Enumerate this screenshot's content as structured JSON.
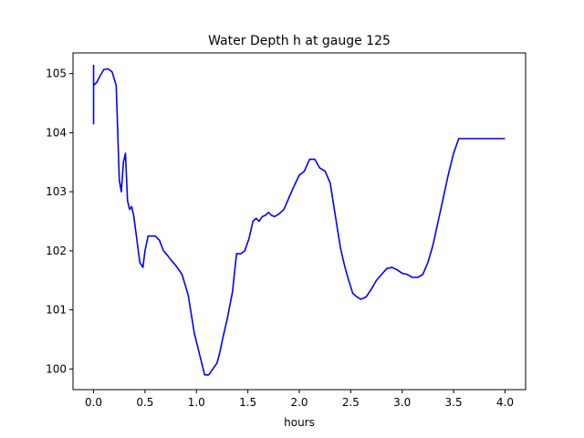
{
  "chart_data": {
    "type": "line",
    "title": "Water Depth h at gauge 125",
    "xlabel": "hours",
    "ylabel": "",
    "xlim": [
      -0.2,
      4.2
    ],
    "ylim": [
      99.65,
      105.35
    ],
    "xticks": [
      0.0,
      0.5,
      1.0,
      1.5,
      2.0,
      2.5,
      3.0,
      3.5,
      4.0
    ],
    "xtick_labels": [
      "0.0",
      "0.5",
      "1.0",
      "1.5",
      "2.0",
      "2.5",
      "3.0",
      "3.5",
      "4.0"
    ],
    "yticks": [
      100,
      101,
      102,
      103,
      104,
      105
    ],
    "ytick_labels": [
      "100",
      "101",
      "102",
      "103",
      "104",
      "105"
    ],
    "grid": false,
    "legend": "none",
    "series": [
      {
        "color": "#0000ff",
        "x": [
          0.0,
          0.0,
          0.0,
          0.0,
          0.03,
          0.06,
          0.1,
          0.14,
          0.18,
          0.22,
          0.235,
          0.25,
          0.27,
          0.29,
          0.31,
          0.33,
          0.35,
          0.37,
          0.39,
          0.42,
          0.45,
          0.48,
          0.5,
          0.53,
          0.56,
          0.6,
          0.64,
          0.68,
          0.72,
          0.75,
          0.8,
          0.86,
          0.92,
          0.98,
          1.03,
          1.08,
          1.12,
          1.16,
          1.2,
          1.23,
          1.26,
          1.3,
          1.35,
          1.39,
          1.43,
          1.47,
          1.51,
          1.55,
          1.58,
          1.61,
          1.64,
          1.67,
          1.7,
          1.73,
          1.76,
          1.8,
          1.85,
          1.9,
          1.95,
          2.0,
          2.05,
          2.1,
          2.15,
          2.2,
          2.25,
          2.3,
          2.35,
          2.4,
          2.44,
          2.48,
          2.52,
          2.56,
          2.6,
          2.65,
          2.7,
          2.75,
          2.8,
          2.85,
          2.9,
          2.95,
          3.0,
          3.05,
          3.1,
          3.15,
          3.2,
          3.25,
          3.3,
          3.35,
          3.4,
          3.45,
          3.5,
          3.55,
          3.6,
          3.65,
          3.7,
          3.75,
          3.8,
          3.85,
          3.9,
          3.95,
          4.0
        ],
        "y": [
          105.15,
          104.15,
          104.8,
          104.8,
          104.85,
          104.95,
          105.07,
          105.08,
          105.03,
          104.8,
          104.0,
          103.2,
          103.0,
          103.5,
          103.65,
          102.85,
          102.7,
          102.75,
          102.6,
          102.2,
          101.8,
          101.72,
          102.0,
          102.25,
          102.25,
          102.25,
          102.18,
          102.0,
          101.92,
          101.85,
          101.75,
          101.6,
          101.25,
          100.6,
          100.25,
          99.9,
          99.9,
          100.0,
          100.1,
          100.3,
          100.55,
          100.85,
          101.3,
          101.95,
          101.95,
          102.0,
          102.2,
          102.5,
          102.55,
          102.5,
          102.58,
          102.6,
          102.65,
          102.6,
          102.58,
          102.62,
          102.7,
          102.9,
          103.1,
          103.28,
          103.35,
          103.55,
          103.55,
          103.4,
          103.35,
          103.15,
          102.6,
          102.05,
          101.75,
          101.5,
          101.28,
          101.22,
          101.18,
          101.22,
          101.35,
          101.5,
          101.6,
          101.7,
          101.72,
          101.68,
          101.62,
          101.6,
          101.55,
          101.55,
          101.6,
          101.8,
          102.1,
          102.5,
          102.9,
          103.3,
          103.65,
          103.9,
          103.9,
          103.9,
          103.9,
          103.9,
          103.9,
          103.9,
          103.9,
          103.9,
          103.9
        ]
      }
    ]
  }
}
